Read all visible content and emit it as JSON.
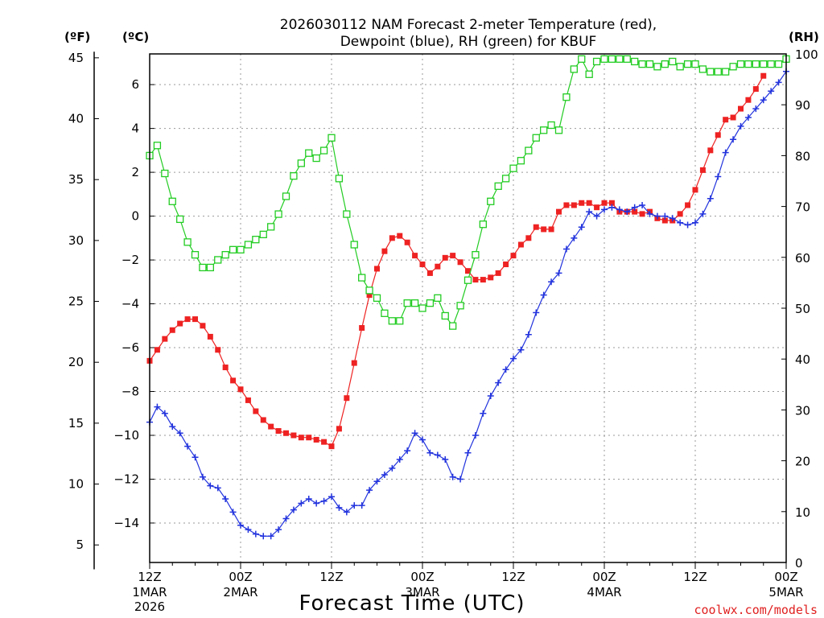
{
  "chart_data": {
    "type": "line",
    "title_line1": "2026030112 NAM Forecast 2-meter Temperature (red),",
    "title_line2": "Dewpoint (blue), RH (green) for KBUF",
    "xlabel": "Forecast Time (UTC)",
    "credit": "coolwx.com/models",
    "unit_f": "(ºF)",
    "unit_c": "(ºC)",
    "unit_rh": "(RH)",
    "hours_range": [
      0,
      84
    ],
    "celsius_range": [
      -15.8,
      7.4
    ],
    "rh_range": [
      0,
      100
    ],
    "grid": true,
    "celsius_ticks": [
      "6",
      "4",
      "2",
      "0",
      "−2",
      "−4",
      "−6",
      "−8",
      "−10",
      "−12",
      "−14"
    ],
    "fahrenheit_ticks": [
      "45",
      "40",
      "35",
      "30",
      "25",
      "20",
      "15",
      "10",
      "5"
    ],
    "rh_ticks": [
      "100",
      "90",
      "80",
      "70",
      "60",
      "50",
      "40",
      "30",
      "20",
      "10",
      "0"
    ],
    "x_ticks": [
      {
        "hour": 0,
        "l1": "12Z",
        "l2": "1MAR",
        "l3": "2026"
      },
      {
        "hour": 12,
        "l1": "00Z",
        "l2": "2MAR",
        "l3": ""
      },
      {
        "hour": 24,
        "l1": "12Z",
        "l2": "",
        "l3": ""
      },
      {
        "hour": 36,
        "l1": "00Z",
        "l2": "3MAR",
        "l3": ""
      },
      {
        "hour": 48,
        "l1": "12Z",
        "l2": "",
        "l3": ""
      },
      {
        "hour": 60,
        "l1": "00Z",
        "l2": "4MAR",
        "l3": ""
      },
      {
        "hour": 72,
        "l1": "12Z",
        "l2": "",
        "l3": ""
      },
      {
        "hour": 84,
        "l1": "00Z",
        "l2": "5MAR",
        "l3": ""
      }
    ],
    "series": [
      {
        "name": "Temperature",
        "axis": "celsius",
        "color": "#ee2222",
        "marker": "filled-square",
        "values": [
          [
            0,
            -6.6
          ],
          [
            1,
            -6.1
          ],
          [
            2,
            -5.6
          ],
          [
            3,
            -5.2
          ],
          [
            4,
            -4.9
          ],
          [
            5,
            -4.7
          ],
          [
            6,
            -4.7
          ],
          [
            7,
            -5
          ],
          [
            8,
            -5.5
          ],
          [
            9,
            -6.1
          ],
          [
            10,
            -6.9
          ],
          [
            11,
            -7.5
          ],
          [
            12,
            -7.9
          ],
          [
            13,
            -8.4
          ],
          [
            14,
            -8.9
          ],
          [
            15,
            -9.3
          ],
          [
            16,
            -9.6
          ],
          [
            17,
            -9.8
          ],
          [
            18,
            -9.9
          ],
          [
            19,
            -10
          ],
          [
            20,
            -10.1
          ],
          [
            21,
            -10.1
          ],
          [
            22,
            -10.2
          ],
          [
            23,
            -10.3
          ],
          [
            24,
            -10.5
          ],
          [
            25,
            -9.7
          ],
          [
            26,
            -8.3
          ],
          [
            27,
            -6.7
          ],
          [
            28,
            -5.1
          ],
          [
            29,
            -3.6
          ],
          [
            30,
            -2.4
          ],
          [
            31,
            -1.6
          ],
          [
            32,
            -1
          ],
          [
            33,
            -0.9
          ],
          [
            34,
            -1.2
          ],
          [
            35,
            -1.8
          ],
          [
            36,
            -2.2
          ],
          [
            37,
            -2.6
          ],
          [
            38,
            -2.3
          ],
          [
            39,
            -1.9
          ],
          [
            40,
            -1.8
          ],
          [
            41,
            -2.1
          ],
          [
            42,
            -2.5
          ],
          [
            43,
            -2.9
          ],
          [
            44,
            -2.9
          ],
          [
            45,
            -2.8
          ],
          [
            46,
            -2.6
          ],
          [
            47,
            -2.2
          ],
          [
            48,
            -1.8
          ],
          [
            49,
            -1.3
          ],
          [
            50,
            -1
          ],
          [
            51,
            -0.5
          ],
          [
            52,
            -0.6
          ],
          [
            53,
            -0.6
          ],
          [
            54,
            0.2
          ],
          [
            55,
            0.5
          ],
          [
            56,
            0.5
          ],
          [
            57,
            0.6
          ],
          [
            58,
            0.6
          ],
          [
            59,
            0.4
          ],
          [
            60,
            0.6
          ],
          [
            61,
            0.6
          ],
          [
            62,
            0.2
          ],
          [
            63,
            0.2
          ],
          [
            64,
            0.2
          ],
          [
            65,
            0.1
          ],
          [
            66,
            0.2
          ],
          [
            67,
            -0.1
          ],
          [
            68,
            -0.2
          ],
          [
            69,
            -0.2
          ],
          [
            70,
            0.1
          ],
          [
            71,
            0.5
          ],
          [
            72,
            1.2
          ],
          [
            73,
            2.1
          ],
          [
            74,
            3
          ],
          [
            75,
            3.7
          ],
          [
            76,
            4.4
          ],
          [
            77,
            4.5
          ],
          [
            78,
            4.9
          ],
          [
            79,
            5.3
          ],
          [
            80,
            5.8
          ],
          [
            81,
            6.4
          ]
        ]
      },
      {
        "name": "Dewpoint",
        "axis": "celsius",
        "color": "#2233dd",
        "marker": "plus",
        "values": [
          [
            0,
            -9.4
          ],
          [
            1,
            -8.7
          ],
          [
            2,
            -9
          ],
          [
            3,
            -9.6
          ],
          [
            4,
            -9.9
          ],
          [
            5,
            -10.5
          ],
          [
            6,
            -11
          ],
          [
            7,
            -11.9
          ],
          [
            8,
            -12.3
          ],
          [
            9,
            -12.4
          ],
          [
            10,
            -12.9
          ],
          [
            11,
            -13.5
          ],
          [
            12,
            -14.1
          ],
          [
            13,
            -14.3
          ],
          [
            14,
            -14.5
          ],
          [
            15,
            -14.6
          ],
          [
            16,
            -14.6
          ],
          [
            17,
            -14.3
          ],
          [
            18,
            -13.8
          ],
          [
            19,
            -13.4
          ],
          [
            20,
            -13.1
          ],
          [
            21,
            -12.9
          ],
          [
            22,
            -13.1
          ],
          [
            23,
            -13
          ],
          [
            24,
            -12.8
          ],
          [
            25,
            -13.3
          ],
          [
            26,
            -13.5
          ],
          [
            27,
            -13.2
          ],
          [
            28,
            -13.2
          ],
          [
            29,
            -12.5
          ],
          [
            30,
            -12.1
          ],
          [
            31,
            -11.8
          ],
          [
            32,
            -11.5
          ],
          [
            33,
            -11.1
          ],
          [
            34,
            -10.7
          ],
          [
            35,
            -9.9
          ],
          [
            36,
            -10.2
          ],
          [
            37,
            -10.8
          ],
          [
            38,
            -10.9
          ],
          [
            39,
            -11.1
          ],
          [
            40,
            -11.9
          ],
          [
            41,
            -12
          ],
          [
            42,
            -10.8
          ],
          [
            43,
            -10
          ],
          [
            44,
            -9
          ],
          [
            45,
            -8.2
          ],
          [
            46,
            -7.6
          ],
          [
            47,
            -7
          ],
          [
            48,
            -6.5
          ],
          [
            49,
            -6.1
          ],
          [
            50,
            -5.4
          ],
          [
            51,
            -4.4
          ],
          [
            52,
            -3.6
          ],
          [
            53,
            -3
          ],
          [
            54,
            -2.6
          ],
          [
            55,
            -1.5
          ],
          [
            56,
            -1
          ],
          [
            57,
            -0.5
          ],
          [
            58,
            0.2
          ],
          [
            59,
            0
          ],
          [
            60,
            0.3
          ],
          [
            61,
            0.4
          ],
          [
            62,
            0.3
          ],
          [
            63,
            0.2
          ],
          [
            64,
            0.4
          ],
          [
            65,
            0.5
          ],
          [
            66,
            0.1
          ],
          [
            67,
            0
          ],
          [
            68,
            0
          ],
          [
            69,
            -0.1
          ],
          [
            70,
            -0.3
          ],
          [
            71,
            -0.4
          ],
          [
            72,
            -0.3
          ],
          [
            73,
            0.1
          ],
          [
            74,
            0.8
          ],
          [
            75,
            1.8
          ],
          [
            76,
            2.9
          ],
          [
            77,
            3.5
          ],
          [
            78,
            4.1
          ],
          [
            79,
            4.5
          ],
          [
            80,
            4.9
          ],
          [
            81,
            5.3
          ],
          [
            82,
            5.7
          ],
          [
            83,
            6.1
          ],
          [
            84,
            6.6
          ]
        ]
      },
      {
        "name": "RH",
        "axis": "rh",
        "color": "#22cc22",
        "marker": "open-square",
        "values": [
          [
            0,
            80
          ],
          [
            1,
            82
          ],
          [
            2,
            76.5
          ],
          [
            3,
            71
          ],
          [
            4,
            67.5
          ],
          [
            5,
            63
          ],
          [
            6,
            60.5
          ],
          [
            7,
            58
          ],
          [
            8,
            58
          ],
          [
            9,
            59.5
          ],
          [
            10,
            60.5
          ],
          [
            11,
            61.5
          ],
          [
            12,
            61.5
          ],
          [
            13,
            62.5
          ],
          [
            14,
            63.5
          ],
          [
            15,
            64.5
          ],
          [
            16,
            66
          ],
          [
            17,
            68.5
          ],
          [
            18,
            72
          ],
          [
            19,
            76
          ],
          [
            20,
            78.5
          ],
          [
            21,
            80.5
          ],
          [
            22,
            79.5
          ],
          [
            23,
            81
          ],
          [
            24,
            83.5
          ],
          [
            25,
            75.5
          ],
          [
            26,
            68.5
          ],
          [
            27,
            62.5
          ],
          [
            28,
            56
          ],
          [
            29,
            53.5
          ],
          [
            30,
            52
          ],
          [
            31,
            49
          ],
          [
            32,
            47.5
          ],
          [
            33,
            47.5
          ],
          [
            34,
            51
          ],
          [
            35,
            51
          ],
          [
            36,
            50
          ],
          [
            37,
            51
          ],
          [
            38,
            52
          ],
          [
            39,
            48.5
          ],
          [
            40,
            46.5
          ],
          [
            41,
            50.5
          ],
          [
            42,
            55.5
          ],
          [
            43,
            60.5
          ],
          [
            44,
            66.5
          ],
          [
            45,
            71
          ],
          [
            46,
            74
          ],
          [
            47,
            75.5
          ],
          [
            48,
            77.5
          ],
          [
            49,
            79
          ],
          [
            50,
            81
          ],
          [
            51,
            83.5
          ],
          [
            52,
            85
          ],
          [
            53,
            86
          ],
          [
            54,
            85
          ],
          [
            55,
            91.5
          ],
          [
            56,
            97
          ],
          [
            57,
            99
          ],
          [
            58,
            96
          ],
          [
            59,
            98.5
          ],
          [
            60,
            99
          ],
          [
            61,
            99
          ],
          [
            62,
            99
          ],
          [
            63,
            99
          ],
          [
            64,
            98.5
          ],
          [
            65,
            98
          ],
          [
            66,
            98
          ],
          [
            67,
            97.5
          ],
          [
            68,
            98
          ],
          [
            69,
            98.5
          ],
          [
            70,
            97.5
          ],
          [
            71,
            98
          ],
          [
            72,
            98
          ],
          [
            73,
            97
          ],
          [
            74,
            96.5
          ],
          [
            75,
            96.5
          ],
          [
            76,
            96.5
          ],
          [
            77,
            97.5
          ],
          [
            78,
            98
          ],
          [
            79,
            98
          ],
          [
            80,
            98
          ],
          [
            81,
            98
          ],
          [
            82,
            98
          ],
          [
            83,
            98
          ],
          [
            84,
            99
          ]
        ]
      }
    ]
  }
}
